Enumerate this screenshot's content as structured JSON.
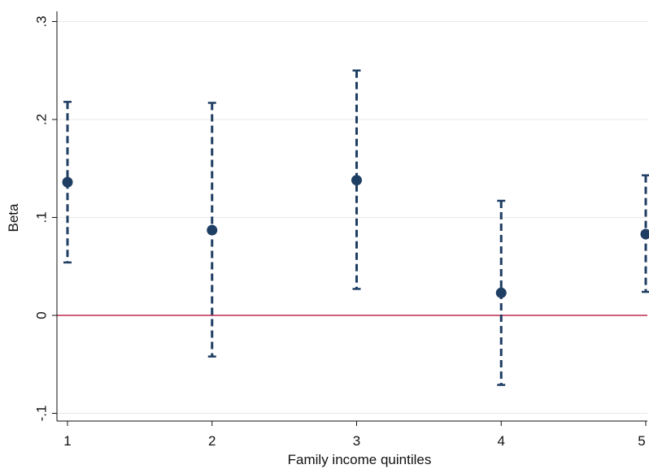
{
  "chart_data": {
    "type": "scatter",
    "title": "",
    "xlabel": "Family income quintiles",
    "ylabel": "Beta",
    "x_ticks": [
      "1",
      "2",
      "3",
      "4",
      "5"
    ],
    "y_ticks": [
      {
        "value": -0.1,
        "label": "-.1"
      },
      {
        "value": 0,
        "label": "0"
      },
      {
        "value": 0.1,
        "label": ".1"
      },
      {
        "value": 0.2,
        "label": ".2"
      },
      {
        "value": 0.3,
        "label": ".3"
      }
    ],
    "xlim": [
      1,
      5
    ],
    "ylim": [
      -0.11,
      0.31
    ],
    "grid": "horizontal",
    "reference_line": {
      "y": 0,
      "color": "#c0284f"
    },
    "series": [
      {
        "type": "point-with-ci",
        "color": "#1f3e63",
        "points": [
          {
            "x": 1,
            "y": 0.136,
            "ci_low": 0.054,
            "ci_high": 0.218
          },
          {
            "x": 2,
            "y": 0.087,
            "ci_low": -0.042,
            "ci_high": 0.217
          },
          {
            "x": 3,
            "y": 0.138,
            "ci_low": 0.027,
            "ci_high": 0.25
          },
          {
            "x": 4,
            "y": 0.023,
            "ci_low": -0.071,
            "ci_high": 0.117
          },
          {
            "x": 5,
            "y": 0.083,
            "ci_low": 0.024,
            "ci_high": 0.143
          }
        ]
      }
    ]
  }
}
